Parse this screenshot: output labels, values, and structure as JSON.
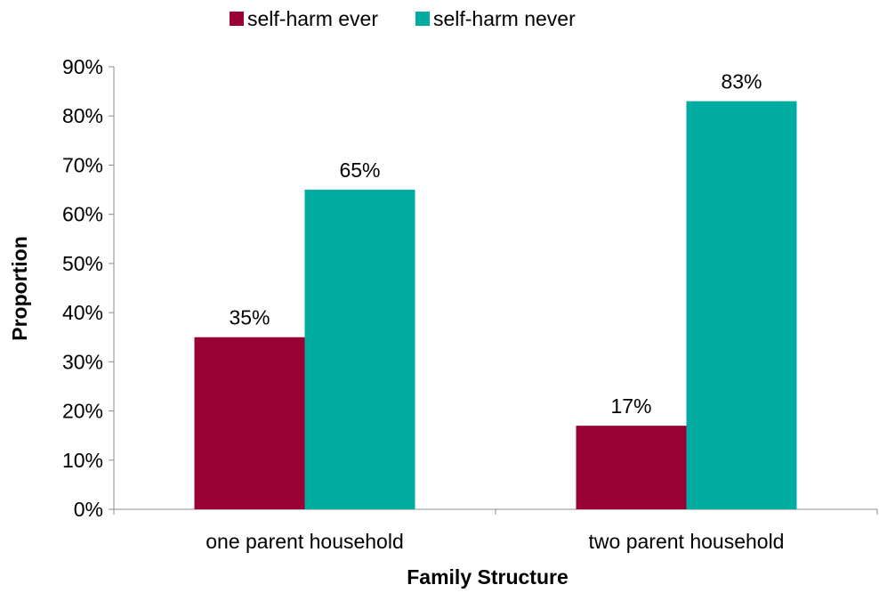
{
  "chart_data": {
    "type": "bar",
    "categories": [
      "one parent household",
      "two parent household"
    ],
    "series": [
      {
        "name": "self-harm ever",
        "values": [
          35,
          17
        ],
        "color": "#990033"
      },
      {
        "name": "self-harm never",
        "values": [
          65,
          83
        ],
        "color": "#00ADA0"
      }
    ],
    "data_labels": [
      [
        "35%",
        "17%"
      ],
      [
        "65%",
        "83%"
      ]
    ],
    "y_ticks": [
      "0%",
      "10%",
      "20%",
      "30%",
      "40%",
      "50%",
      "60%",
      "70%",
      "80%",
      "90%"
    ],
    "xlabel": "Family Structure",
    "ylabel": "Proportion",
    "ylim": [
      0,
      90
    ],
    "y_unit": "%",
    "grid": false,
    "legend_position": "top-center"
  }
}
